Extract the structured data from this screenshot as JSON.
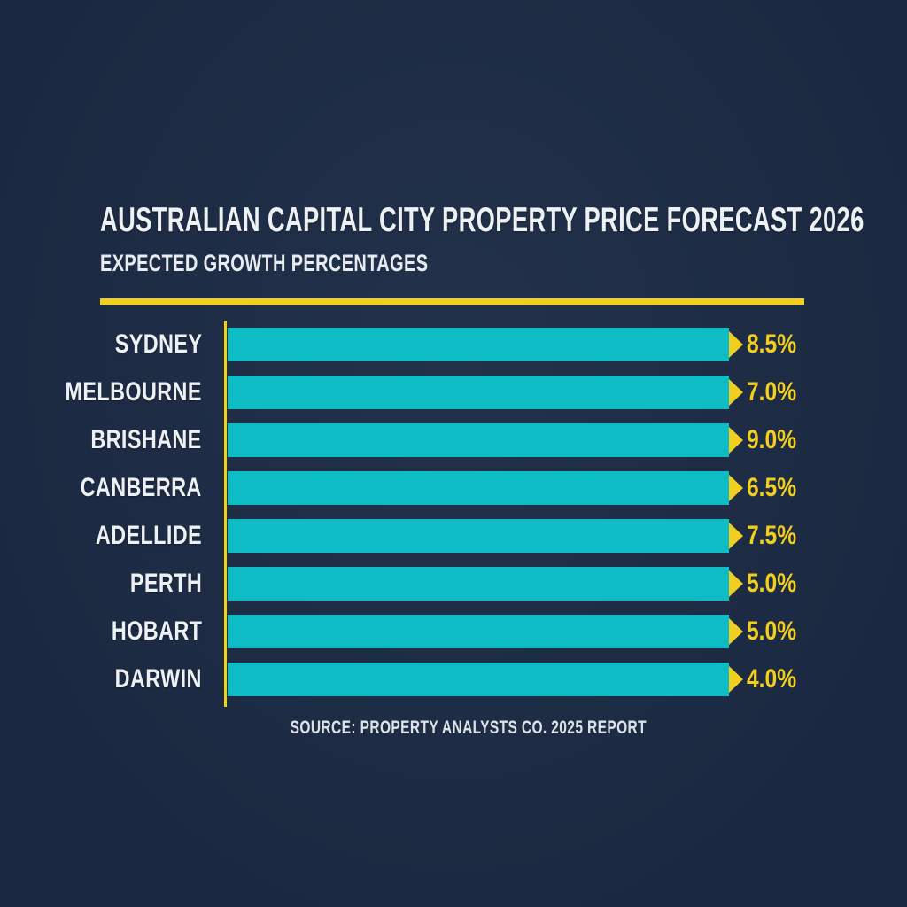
{
  "header": {
    "title": "AUSTRALIAN CAPITAL CITY PROPERTY PRICE FORECAST 2026",
    "subtitle": "EXPECTED GROWTH PERCENTAGES"
  },
  "footer": {
    "source": "SOURCE: PROPERTY ANALYSTS CO. 2025 REPORT"
  },
  "colors": {
    "background": "#1c2b45",
    "bar_teal": "#0dbcc4",
    "accent_yellow": "#f2cf1f",
    "text_white": "#eef1f4"
  },
  "chart_data": {
    "type": "bar",
    "orientation": "horizontal",
    "title": "AUSTRALIAN CAPITAL CITY PROPERTY PRICE FORECAST 2026",
    "subtitle": "EXPECTED GROWTH PERCENTAGES",
    "source": "SOURCE: PROPERTY ANALYSTS CO. 2025 REPORT",
    "categories": [
      "SYDNEY",
      "MELBOURNE",
      "BRISHANE",
      "CANBERRA",
      "ADELLIDE",
      "PERTH",
      "HOBART",
      "DARWIN"
    ],
    "values": [
      8.5,
      7.0,
      9.0,
      6.5,
      7.5,
      5.0,
      5.0,
      4.0
    ],
    "display_values": [
      "8.5%",
      "7.0%",
      "9.0%",
      "6.5%",
      "7.5%",
      "5.0%",
      "5.0%",
      "4.0%"
    ],
    "value_unit": "%",
    "layout_hints": {
      "bar_style": "uniform-length",
      "value_labels": "outside-end-with-arrow",
      "grid": false,
      "legend": false,
      "axis_line": "left-vertical-yellow"
    }
  }
}
